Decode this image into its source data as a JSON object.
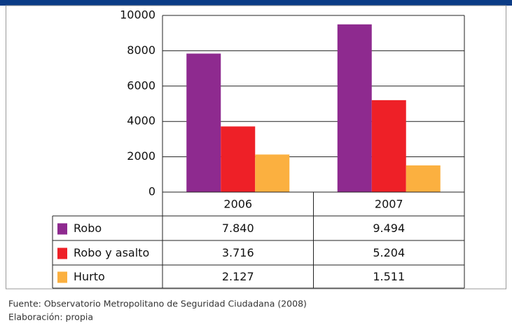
{
  "chart_data": {
    "type": "bar",
    "categories": [
      "2006",
      "2007"
    ],
    "series": [
      {
        "name": "Robo",
        "color": "#8e2a8f",
        "values": [
          7840,
          9494
        ],
        "value_labels": [
          "7.840",
          "9.494"
        ]
      },
      {
        "name": "Robo y asalto",
        "color": "#ee2027",
        "values": [
          3716,
          5204
        ],
        "value_labels": [
          "3.716",
          "5.204"
        ]
      },
      {
        "name": "Hurto",
        "color": "#fbb040",
        "values": [
          2127,
          1511
        ],
        "value_labels": [
          "2.127",
          "1.511"
        ]
      }
    ],
    "ylim": [
      0,
      10000
    ],
    "yticks": [
      0,
      2000,
      4000,
      6000,
      8000,
      10000
    ],
    "grid": true,
    "notes": [
      "Fuente: Observatorio Metropolitano de Seguridad Ciudadana (2008)",
      "Elaboración: propia"
    ]
  }
}
